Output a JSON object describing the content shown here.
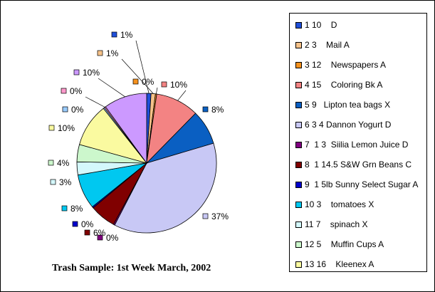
{
  "chart_data": {
    "type": "pie",
    "title": "Trash Sample: 1st Week March, 2002",
    "legend_position": "right",
    "slices": [
      {
        "legend": "1 10    D",
        "percent_label": "1%",
        "value": 1,
        "color": "#1f4fd9"
      },
      {
        "legend": "2 3    Mail A",
        "percent_label": "1%",
        "value": 1,
        "color": "#f6c289"
      },
      {
        "legend": "3 12    Newspapers A",
        "percent_label": "0%",
        "value": 0.3,
        "color": "#f6921e"
      },
      {
        "legend": "4 15    Coloring Bk A",
        "percent_label": "10%",
        "value": 10,
        "color": "#f38383"
      },
      {
        "legend": "5 9   Lipton tea bags X",
        "percent_label": "8%",
        "value": 8,
        "color": "#0a5fc2"
      },
      {
        "legend": "6 3 4 Dannon Yogurt D",
        "percent_label": "37%",
        "value": 37,
        "color": "#c8c8f5"
      },
      {
        "legend": "7  1 3  Siilia Lemon Juice D",
        "percent_label": "0%",
        "value": 0.3,
        "color": "#800080"
      },
      {
        "legend": "8  1 14.5 S&W Grn Beans C",
        "percent_label": "6%",
        "value": 6,
        "color": "#800000"
      },
      {
        "legend": "9  1 5lb Sunny Select Sugar A",
        "percent_label": "0%",
        "value": 0.3,
        "color": "#0000cc"
      },
      {
        "legend": "10 3    tomatoes X",
        "percent_label": "8%",
        "value": 8,
        "color": "#00c8f0"
      },
      {
        "legend": "11 7    spinach X",
        "percent_label": "3%",
        "value": 3,
        "color": "#d4f8fc"
      },
      {
        "legend": "12 5    Muffin Cups A",
        "percent_label": "4%",
        "value": 4,
        "color": "#ccf7cc"
      },
      {
        "legend": "13 16    Kleenex A",
        "percent_label": "10%",
        "value": 10,
        "color": "#fafaa0"
      },
      {
        "legend": "",
        "percent_label": "0%",
        "value": 0.3,
        "color": "#99ccff"
      },
      {
        "legend": "",
        "percent_label": "0%",
        "value": 0.3,
        "color": "#ff99cc"
      },
      {
        "legend": "",
        "percent_label": "10%",
        "value": 10,
        "color": "#cc99ff"
      }
    ]
  }
}
